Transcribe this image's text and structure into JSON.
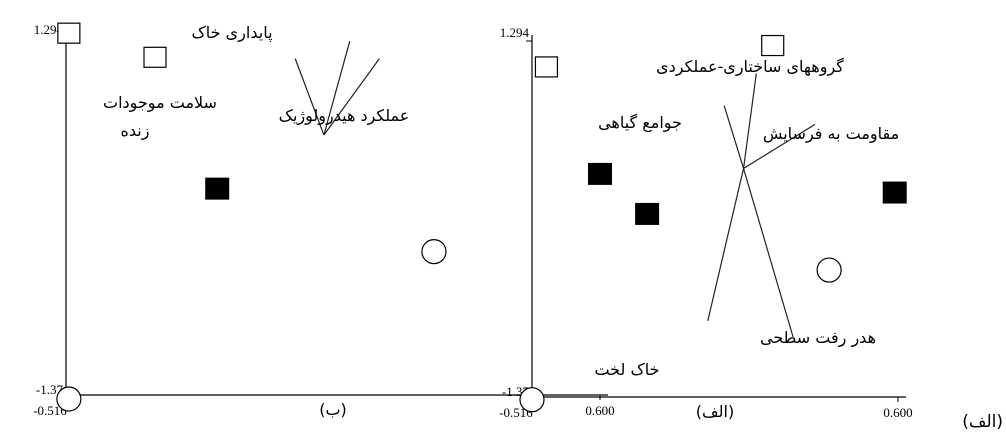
{
  "chart_data": [
    {
      "type": "scatter",
      "caption": "(ب)",
      "x_tick_labels": [
        "-0.516",
        "0.600"
      ],
      "y_tick_labels": [
        "1.294",
        "-1.37"
      ],
      "xlim": [
        -0.516,
        0.6
      ],
      "ylim": [
        -1.37,
        1.294
      ],
      "vectors_origin": [
        0.023,
        0.57
      ],
      "vectors": [
        {
          "label": "پایداری خاک",
          "end": [
            0.077,
            1.27
          ]
        },
        {
          "label": "سلامت موجودات",
          "label2": "زنده",
          "end": [
            -0.037,
            1.14
          ]
        },
        {
          "label": "عملکرد هیدرولوژیک",
          "end": [
            0.139,
            1.14
          ]
        }
      ],
      "points": [
        {
          "shape": "open-square",
          "x": -0.51,
          "y": 1.33
        },
        {
          "shape": "open-square",
          "x": -0.33,
          "y": 1.15
        },
        {
          "shape": "filled-square",
          "x": -0.2,
          "y": 0.17
        },
        {
          "shape": "filled-square",
          "x": 0.6,
          "y": 0.28
        },
        {
          "shape": "open-circle",
          "x": 0.253,
          "y": -0.3
        },
        {
          "shape": "open-circle",
          "x": -0.51,
          "y": -1.4
        }
      ]
    },
    {
      "type": "scatter",
      "caption": "(الف)",
      "x_tick_labels": [
        "-0.516",
        "0.600"
      ],
      "y_tick_labels": [
        "1.294",
        "-1.37"
      ],
      "xlim": [
        -0.516,
        0.6
      ],
      "ylim": [
        -1.37,
        1.294
      ],
      "vectors_origin": [
        0.129,
        0.34
      ],
      "vectors": [
        {
          "label": "گروههای ساختاری-عملکردی",
          "end": [
            0.168,
            1.05
          ]
        },
        {
          "label": "جوامع گیاهی",
          "end": [
            0.07,
            0.81
          ]
        },
        {
          "label": "مقاومت به فرسایش",
          "end": [
            0.347,
            0.67
          ]
        },
        {
          "label": "هدر رفت سطحی",
          "end": [
            0.28,
            -0.92
          ]
        },
        {
          "label": "خاک لخت",
          "end": [
            0.02,
            -0.8
          ]
        }
      ],
      "points": [
        {
          "shape": "open-square",
          "x": 0.218,
          "y": 1.26
        },
        {
          "shape": "open-square",
          "x": -0.472,
          "y": 1.1
        },
        {
          "shape": "filled-square",
          "x": -0.165,
          "y": 0.0
        },
        {
          "shape": "filled-square",
          "x": 0.59,
          "y": 0.16
        },
        {
          "shape": "open-circle",
          "x": 0.39,
          "y": -0.42
        },
        {
          "shape": "open-circle",
          "x": -0.516,
          "y": -1.39
        }
      ]
    }
  ],
  "page": {
    "corner_label": "(الف)"
  }
}
